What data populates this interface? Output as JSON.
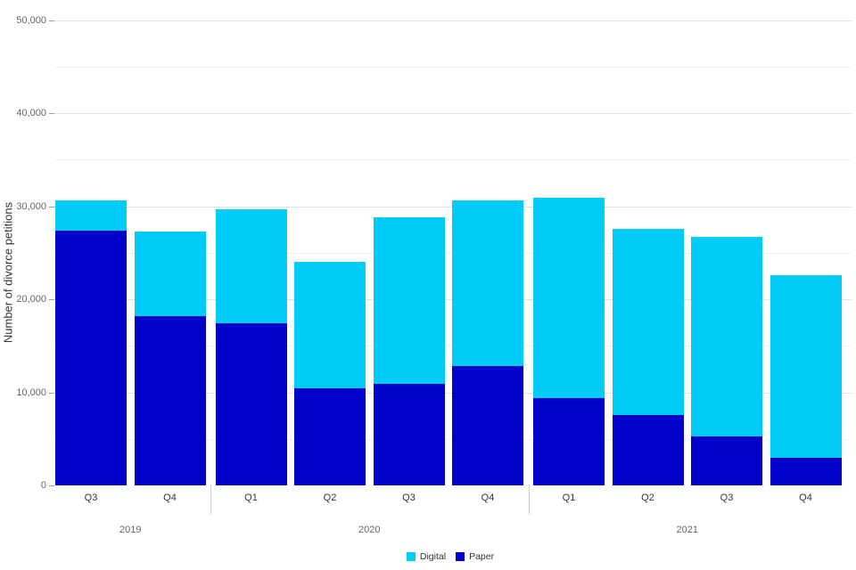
{
  "chart_data": {
    "type": "bar",
    "stacked": true,
    "title": "",
    "xlabel": "",
    "ylabel": "Number of divorce petitions",
    "ylim": [
      0,
      50000
    ],
    "y_major_step": 10000,
    "y_minor_step": 5000,
    "y_tick_labels": [
      "0",
      "10,000",
      "20,000",
      "30,000",
      "40,000",
      "50,000"
    ],
    "grid": true,
    "legend_position": "bottom-center",
    "groups": [
      {
        "year": "2019",
        "quarters": [
          "Q3",
          "Q4"
        ]
      },
      {
        "year": "2020",
        "quarters": [
          "Q1",
          "Q2",
          "Q3",
          "Q4"
        ]
      },
      {
        "year": "2021",
        "quarters": [
          "Q1",
          "Q2",
          "Q3",
          "Q4"
        ]
      }
    ],
    "categories": [
      "Q3 2019",
      "Q4 2019",
      "Q1 2020",
      "Q2 2020",
      "Q3 2020",
      "Q4 2020",
      "Q1 2021",
      "Q2 2021",
      "Q3 2021",
      "Q4 2021"
    ],
    "series": [
      {
        "name": "Digital",
        "color": "#00ccf7",
        "values": [
          3200,
          9100,
          12300,
          13600,
          17900,
          17800,
          21500,
          20000,
          21400,
          19600
        ]
      },
      {
        "name": "Paper",
        "color": "#0101cc",
        "values": [
          27400,
          18200,
          17400,
          10400,
          10900,
          12800,
          9400,
          7600,
          5300,
          3000
        ]
      }
    ]
  },
  "colors": {
    "background": "#ffffff",
    "major_gridline": "#e2e2e2",
    "minor_gridline": "#f1f1f1",
    "tick": "#9e9e9e",
    "separator": "#cccccc",
    "axis_text": "#666666",
    "label_text": "#333333"
  }
}
